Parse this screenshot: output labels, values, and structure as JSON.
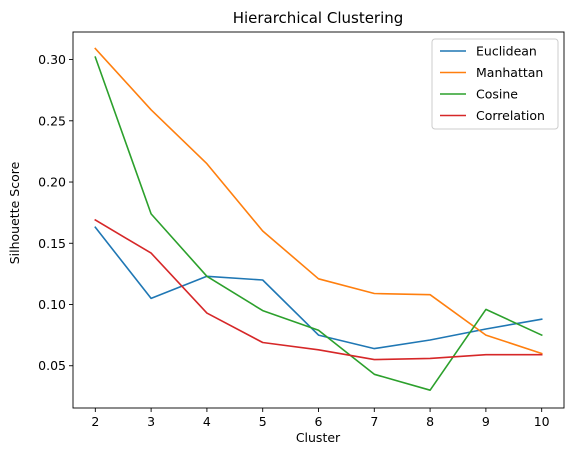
{
  "chart_data": {
    "type": "line",
    "title": "Hierarchical Clustering",
    "xlabel": "Cluster",
    "ylabel": "Silhouette Score",
    "x": [
      2,
      3,
      4,
      5,
      6,
      7,
      8,
      9,
      10
    ],
    "xlim": [
      1.6,
      10.4
    ],
    "ylim": [
      0.0155,
      0.3225
    ],
    "yticks": [
      0.05,
      0.1,
      0.15,
      0.2,
      0.25,
      0.3
    ],
    "ytick_labels": [
      "0.05",
      "0.10",
      "0.15",
      "0.20",
      "0.25",
      "0.30"
    ],
    "xticks": [
      2,
      3,
      4,
      5,
      6,
      7,
      8,
      9,
      10
    ],
    "xtick_labels": [
      "2",
      "3",
      "4",
      "5",
      "6",
      "7",
      "8",
      "9",
      "10"
    ],
    "grid": false,
    "legend_position": "top-right",
    "series": [
      {
        "name": "Euclidean",
        "color": "#1f77b4",
        "values": [
          0.163,
          0.105,
          0.123,
          0.12,
          0.075,
          0.064,
          0.071,
          0.08,
          0.088
        ]
      },
      {
        "name": "Manhattan",
        "color": "#ff7f0e",
        "values": [
          0.309,
          0.259,
          0.215,
          0.16,
          0.121,
          0.109,
          0.108,
          0.075,
          0.06
        ]
      },
      {
        "name": "Cosine",
        "color": "#2ca02c",
        "values": [
          0.302,
          0.174,
          0.123,
          0.095,
          0.079,
          0.043,
          0.03,
          0.096,
          0.075
        ]
      },
      {
        "name": "Correlation",
        "color": "#d62728",
        "values": [
          0.169,
          0.142,
          0.093,
          0.069,
          0.063,
          0.055,
          0.056,
          0.059,
          0.059
        ]
      }
    ]
  }
}
